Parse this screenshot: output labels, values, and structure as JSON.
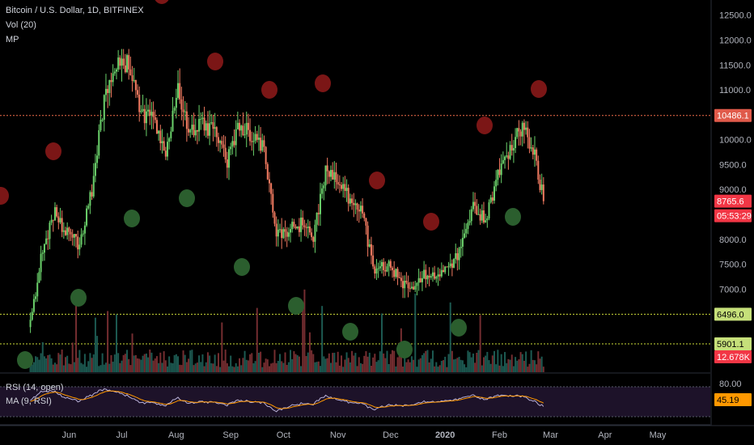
{
  "header": {
    "symbol_title": "Bitcoin / U.S. Dollar, 1D, BITFINEX",
    "volume_label": "Vol (20)",
    "mp_label": "MP"
  },
  "rsi_panel": {
    "rsi_label": "RSI (14, open)",
    "ma_label": "MA (9, RSI)",
    "levels": [
      80,
      20
    ]
  },
  "price_axis": {
    "ticks": [
      "12500.0",
      "12000.0",
      "11500.0",
      "11000.0",
      "10000.0",
      "9500.0",
      "9000.0",
      "8000.0",
      "7500.0",
      "7000.0"
    ]
  },
  "badges": {
    "resistance": {
      "label": "10486.1",
      "color": "#e05a4a"
    },
    "current_price": {
      "label": "8765.6",
      "color": "#f23645"
    },
    "countdown": {
      "label": "05:53:29",
      "color": "#f23645"
    },
    "support_1": {
      "label": "6496.0",
      "color": "#c6e07a"
    },
    "support_2": {
      "label": "5901.1",
      "color": "#c6e07a"
    },
    "volume": {
      "label": "12.678K",
      "color": "#f23645"
    },
    "rsi_value": {
      "label": "45.19",
      "color": "#ff9800"
    }
  },
  "time_axis": {
    "labels": [
      "Jun",
      "Jul",
      "Aug",
      "Sep",
      "Oct",
      "Nov",
      "Dec",
      "2020",
      "Feb",
      "Mar",
      "Apr",
      "May"
    ]
  },
  "colors": {
    "up": "#4caf50",
    "down": "#ef5350",
    "resistance_line": "#ef6c4a",
    "support_line": "#cddc39",
    "rsi_band": "#2a1a3a",
    "rsi_line": "#b8b0d8",
    "ma_line": "#ff9800"
  },
  "chart_data": {
    "type": "candlestick",
    "title": "Bitcoin / U.S. Dollar, 1D, BITFINEX",
    "ylim": [
      5600,
      12800
    ],
    "horizontal_levels": [
      10486.1,
      6496.0,
      5901.1
    ],
    "x": [
      "2019-05-10",
      "2019-05-17",
      "2019-05-24",
      "2019-05-31",
      "2019-06-07",
      "2019-06-14",
      "2019-06-21",
      "2019-06-28",
      "2019-07-05",
      "2019-07-12",
      "2019-07-19",
      "2019-07-26",
      "2019-08-02",
      "2019-08-09",
      "2019-08-16",
      "2019-08-23",
      "2019-08-30",
      "2019-09-06",
      "2019-09-13",
      "2019-09-20",
      "2019-09-27",
      "2019-10-04",
      "2019-10-11",
      "2019-10-18",
      "2019-10-25",
      "2019-11-01",
      "2019-11-08",
      "2019-11-15",
      "2019-11-22",
      "2019-11-29",
      "2019-12-06",
      "2019-12-13",
      "2019-12-20",
      "2019-12-27",
      "2020-01-03",
      "2020-01-10",
      "2020-01-17",
      "2020-01-24",
      "2020-01-31",
      "2020-02-07",
      "2020-02-14",
      "2020-02-21",
      "2020-02-26"
    ],
    "close": [
      6300,
      7800,
      8500,
      8100,
      7900,
      9000,
      10800,
      11600,
      11500,
      10500,
      10400,
      9800,
      11000,
      10100,
      10300,
      10200,
      9600,
      10300,
      10100,
      9800,
      8100,
      8200,
      8300,
      8000,
      9400,
      9200,
      8800,
      8500,
      7300,
      7500,
      7200,
      7000,
      7300,
      7200,
      7400,
      7800,
      8600,
      8400,
      9300,
      9800,
      10300,
      9700,
      8765.6
    ],
    "circles_sell": [
      9200,
      9900,
      11500,
      11100,
      11200,
      9500,
      8200,
      9700,
      11000
    ],
    "circles_buy": [
      5800,
      7000,
      7700,
      8700,
      9100,
      7400,
      6700,
      6250,
      6000,
      6300,
      8900
    ],
    "volume_unit": "K",
    "volume_last": 12.678,
    "rsi": {
      "period": 14,
      "source": "open",
      "ma_period": 9,
      "last_ma": 45.19,
      "levels": [
        80,
        20
      ]
    }
  }
}
